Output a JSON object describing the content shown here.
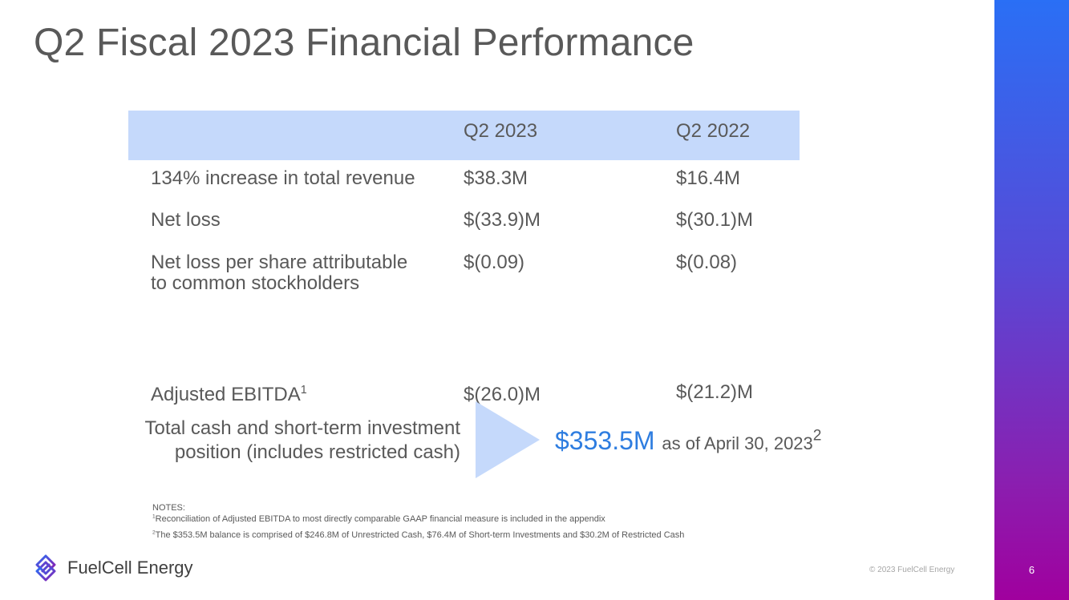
{
  "title": "Q2 Fiscal 2023 Financial Performance",
  "table": {
    "headers": [
      "",
      "Q2 2023",
      "Q2 2022"
    ],
    "rows": [
      {
        "label": "134% increase in total revenue",
        "a": "$38.3M",
        "b": "$16.4M"
      },
      {
        "label": "Net loss",
        "a": "$(33.9)M",
        "b": "$(30.1)M"
      },
      {
        "label_line1": "Net loss per share attributable",
        "label_line2": "to common stockholders",
        "a": "$(0.09)",
        "b": "$(0.08)"
      },
      {
        "label": "Adjusted EBITDA",
        "sup": "1",
        "a": "$(26.0)M",
        "b": "$(21.2)M"
      }
    ]
  },
  "cash": {
    "label_line1": "Total cash and short-term investment",
    "label_line2": "position (includes restricted cash)",
    "value": "$353.5M",
    "as_of": "as of April 30, 2023",
    "sup": "2"
  },
  "notes": {
    "heading": "NOTES:",
    "note1_sup": "1",
    "note1": "Reconciliation of Adjusted EBITDA to most directly comparable GAAP financial measure is included in the appendix",
    "note2_sup": "2",
    "note2": "The $353.5M balance is comprised of $246.8M of Unrestricted Cash, $76.4M of Short-term Investments and $30.2M of Restricted Cash"
  },
  "footer": {
    "logo_text": "FuelCell Energy",
    "copyright": "© 2023 FuelCell Energy",
    "page_number": "6"
  },
  "colors": {
    "accent": "#2e7de0",
    "header_fill": "#c5d9fb",
    "bar_top": "#2a6ff5",
    "bar_bottom": "#a0009e"
  },
  "icons": {
    "logo": "fuelcell-logo-icon"
  }
}
